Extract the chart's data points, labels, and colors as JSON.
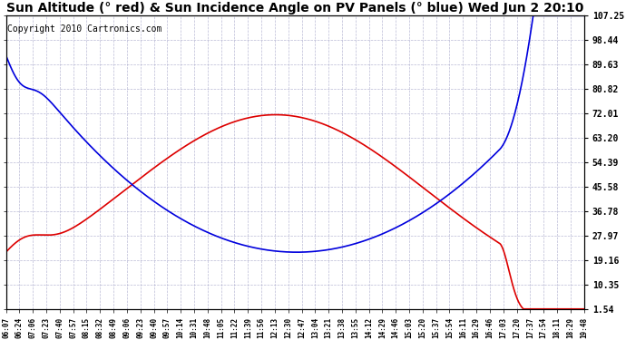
{
  "title": "Sun Altitude (° red) & Sun Incidence Angle on PV Panels (° blue) Wed Jun 2 20:10",
  "copyright": "Copyright 2010 Cartronics.com",
  "yticks": [
    1.54,
    10.35,
    19.16,
    27.97,
    36.78,
    45.58,
    54.39,
    63.2,
    72.01,
    80.82,
    89.63,
    98.44,
    107.25
  ],
  "ylim_min": 1.54,
  "ylim_max": 107.25,
  "background_color": "#ffffff",
  "grid_color": "#aaaacc",
  "title_fontsize": 10,
  "copyright_fontsize": 7,
  "xtick_labels": [
    "06:07",
    "06:24",
    "07:06",
    "07:23",
    "07:40",
    "07:57",
    "08:15",
    "08:32",
    "08:49",
    "09:06",
    "09:23",
    "09:40",
    "09:57",
    "10:14",
    "10:31",
    "10:48",
    "11:05",
    "11:22",
    "11:39",
    "11:56",
    "12:13",
    "12:30",
    "12:47",
    "13:04",
    "13:21",
    "13:38",
    "13:55",
    "14:12",
    "14:29",
    "14:46",
    "15:03",
    "15:20",
    "15:37",
    "15:54",
    "16:11",
    "16:29",
    "16:46",
    "17:03",
    "17:20",
    "17:37",
    "17:54",
    "18:11",
    "18:29",
    "19:48"
  ],
  "red_color": "#dd0000",
  "blue_color": "#0000dd",
  "linewidth": 1.2,
  "figwidth": 6.9,
  "figheight": 3.75,
  "dpi": 100
}
